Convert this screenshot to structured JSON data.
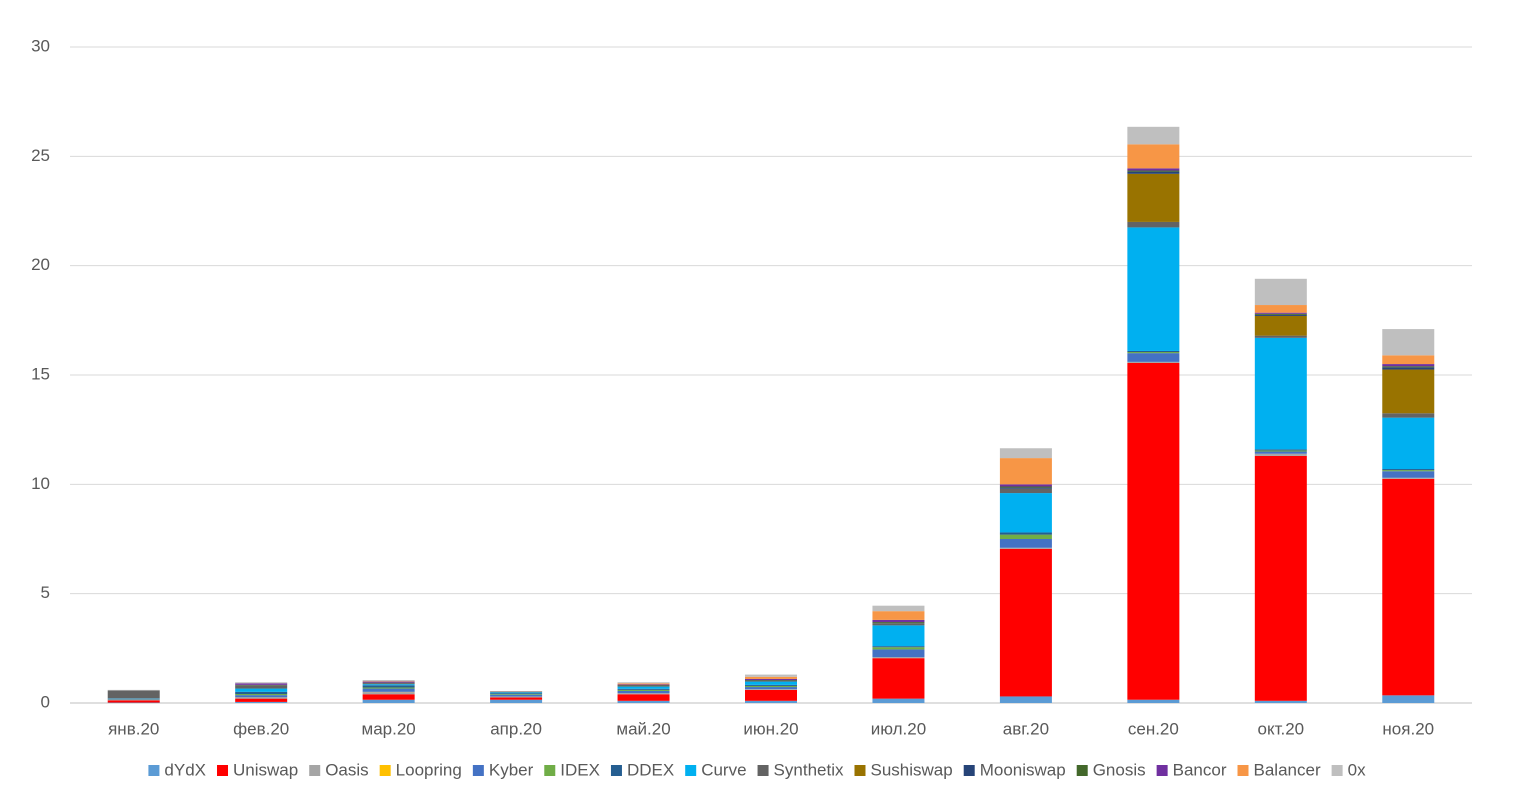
{
  "chart_data": {
    "type": "stacked_bar",
    "categories": [
      "янв.20",
      "фев.20",
      "мар.20",
      "апр.20",
      "май.20",
      "июн.20",
      "июл.20",
      "авг.20",
      "сен.20",
      "окт.20",
      "ноя.20"
    ],
    "series": [
      {
        "name": "dYdX",
        "color": "#5b9bd5",
        "values": [
          0.02,
          0.05,
          0.15,
          0.15,
          0.1,
          0.1,
          0.2,
          0.3,
          0.15,
          0.1,
          0.35
        ]
      },
      {
        "name": "Uniswap",
        "color": "#ff0000",
        "values": [
          0.1,
          0.15,
          0.25,
          0.1,
          0.3,
          0.5,
          1.85,
          6.75,
          15.4,
          11.2,
          9.9
        ]
      },
      {
        "name": "Oasis",
        "color": "#a5a5a5",
        "values": [
          0.02,
          0.05,
          0.1,
          0.05,
          0.05,
          0.03,
          0.05,
          0.05,
          0.05,
          0.1,
          0.05
        ]
      },
      {
        "name": "Loopring",
        "color": "#ffc000",
        "values": [
          0,
          0.01,
          0.01,
          0,
          0,
          0,
          0,
          0,
          0,
          0,
          0
        ]
      },
      {
        "name": "Kyber",
        "color": "#4472c4",
        "values": [
          0.03,
          0.1,
          0.15,
          0.08,
          0.1,
          0.1,
          0.35,
          0.4,
          0.4,
          0.1,
          0.3
        ]
      },
      {
        "name": "IDEX",
        "color": "#70ad47",
        "values": [
          0.02,
          0.05,
          0.05,
          0.03,
          0.05,
          0.05,
          0.1,
          0.2,
          0.05,
          0.05,
          0.05
        ]
      },
      {
        "name": "DDEX",
        "color": "#255e91",
        "values": [
          0.02,
          0.1,
          0.1,
          0.04,
          0.05,
          0.05,
          0.05,
          0.1,
          0.05,
          0.05,
          0.05
        ]
      },
      {
        "name": "Curve",
        "color": "#00b0f0",
        "values": [
          0.01,
          0.15,
          0.05,
          0.04,
          0.1,
          0.15,
          0.95,
          1.8,
          5.65,
          5.1,
          2.35
        ]
      },
      {
        "name": "Synthetix",
        "color": "#636363",
        "values": [
          0.35,
          0.15,
          0.05,
          0.02,
          0.05,
          0.05,
          0.1,
          0.2,
          0.25,
          0.1,
          0.2
        ]
      },
      {
        "name": "Sushiswap",
        "color": "#997300",
        "values": [
          0,
          0,
          0,
          0,
          0,
          0,
          0,
          0,
          2.2,
          0.9,
          2.0
        ]
      },
      {
        "name": "Mooniswap",
        "color": "#264478",
        "values": [
          0,
          0,
          0,
          0,
          0,
          0,
          0,
          0.05,
          0.1,
          0.05,
          0.1
        ]
      },
      {
        "name": "Gnosis",
        "color": "#43682b",
        "values": [
          0,
          0.02,
          0.02,
          0.01,
          0.02,
          0.02,
          0.05,
          0.05,
          0.05,
          0.05,
          0.05
        ]
      },
      {
        "name": "Bancor",
        "color": "#7030a0",
        "values": [
          0,
          0.07,
          0.05,
          0.01,
          0.03,
          0.05,
          0.1,
          0.1,
          0.1,
          0.05,
          0.1
        ]
      },
      {
        "name": "Balancer",
        "color": "#f79646",
        "values": [
          0,
          0,
          0.02,
          0.01,
          0.05,
          0.1,
          0.4,
          1.2,
          1.1,
          0.35,
          0.4
        ]
      },
      {
        "name": "0x",
        "color": "#bfbfbf",
        "values": [
          0.03,
          0.05,
          0.05,
          0.01,
          0.05,
          0.1,
          0.25,
          0.45,
          0.8,
          1.2,
          1.2
        ]
      }
    ],
    "ylim": [
      0,
      30
    ],
    "yticks": [
      0,
      5,
      10,
      15,
      20,
      25,
      30
    ],
    "grid": true,
    "legend": "bottom"
  }
}
